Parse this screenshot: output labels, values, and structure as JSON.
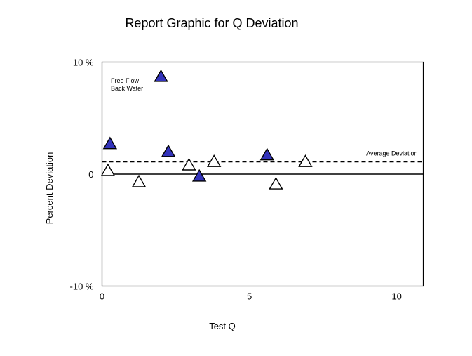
{
  "chart_data": {
    "type": "scatter",
    "title": "Report Graphic for Q Deviation",
    "xlabel": "Test Q",
    "ylabel": "Percent Deviation",
    "xlim": [
      0,
      10.9
    ],
    "ylim": [
      -10,
      10
    ],
    "x_ticks": [
      {
        "value": 0,
        "label": "0"
      },
      {
        "value": 5,
        "label": "5"
      },
      {
        "value": 10,
        "label": "10"
      }
    ],
    "y_ticks": [
      {
        "value": 10,
        "label": "10 %"
      },
      {
        "value": 0,
        "label": "0"
      },
      {
        "value": -10,
        "label": "-10 %"
      }
    ],
    "grid": false,
    "legend_position": "top-left",
    "series": [
      {
        "name": "Free Flow",
        "marker": "filled-triangle",
        "color": "#3333bb",
        "points": [
          {
            "x": 0.27,
            "y": 2.7
          },
          {
            "x": 2.0,
            "y": 8.7
          },
          {
            "x": 2.25,
            "y": 2.0
          },
          {
            "x": 3.3,
            "y": -0.2
          },
          {
            "x": 5.6,
            "y": 1.7
          }
        ]
      },
      {
        "name": "Back Water",
        "marker": "open-triangle",
        "color": "#ffffff",
        "points": [
          {
            "x": 0.2,
            "y": 0.3
          },
          {
            "x": 1.25,
            "y": -0.7
          },
          {
            "x": 2.95,
            "y": 0.8
          },
          {
            "x": 3.8,
            "y": 1.1
          },
          {
            "x": 5.9,
            "y": -0.9
          },
          {
            "x": 6.9,
            "y": 1.1
          }
        ]
      }
    ],
    "reference_lines": [
      {
        "label": "Average Deviation",
        "y": 1.1,
        "style": "dashed"
      }
    ],
    "zero_line": true
  }
}
